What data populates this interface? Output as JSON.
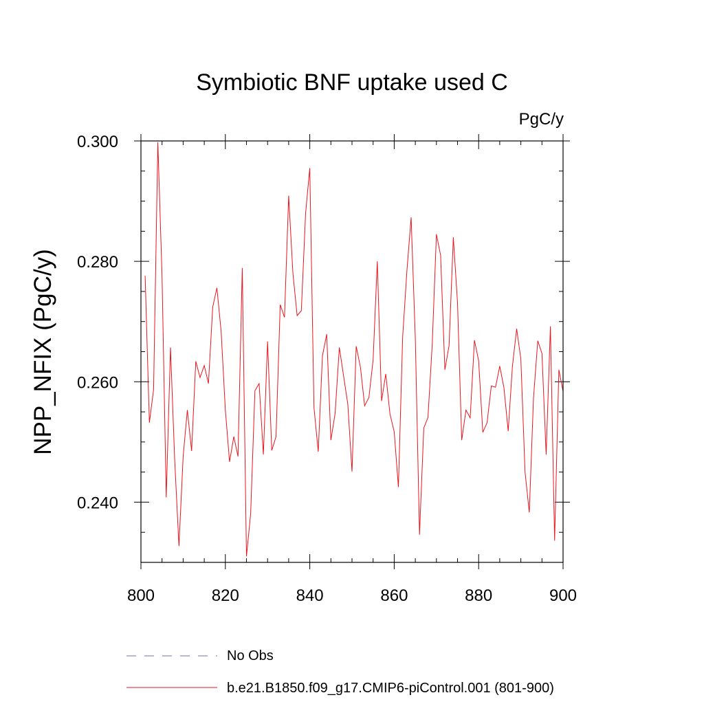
{
  "chart_data": {
    "type": "line",
    "title": "Symbiotic BNF uptake used C",
    "units": "PgC/y",
    "xlabel": "",
    "ylabel": "NPP_NFIX  (PgC/y)",
    "xlim": [
      800,
      900
    ],
    "ylim": [
      0.23,
      0.3
    ],
    "x_major_ticks": [
      800,
      820,
      840,
      860,
      880,
      900
    ],
    "x_tick_labels": [
      "800",
      "820",
      "840",
      "860",
      "880",
      "900"
    ],
    "x_minor_step": 5,
    "y_major_ticks": [
      0.24,
      0.26,
      0.28,
      0.3
    ],
    "y_tick_labels": [
      "0.240",
      "0.260",
      "0.280",
      "0.300"
    ],
    "y_minor_step": 0.005,
    "grid": false,
    "legend_position": "bottom",
    "series": [
      {
        "name": "No Obs",
        "color": "#7b68b5",
        "dash": true,
        "values": []
      },
      {
        "name": "b.e21.B1850.f09_g17.CMIP6-piControl.001 (801-900)",
        "color": "#e8141c",
        "dash": false,
        "x_start": 801,
        "x_step": 1,
        "values": [
          0.2776,
          0.2532,
          0.2587,
          0.2998,
          0.2775,
          0.2408,
          0.2657,
          0.247,
          0.2327,
          0.2476,
          0.2553,
          0.2485,
          0.2634,
          0.2607,
          0.2627,
          0.2597,
          0.2724,
          0.2756,
          0.2683,
          0.2553,
          0.2467,
          0.2509,
          0.2476,
          0.2789,
          0.231,
          0.2381,
          0.2585,
          0.2597,
          0.2479,
          0.2667,
          0.2486,
          0.2509,
          0.2728,
          0.2707,
          0.2909,
          0.2781,
          0.271,
          0.2718,
          0.288,
          0.2955,
          0.2557,
          0.2484,
          0.2643,
          0.2679,
          0.2503,
          0.2547,
          0.2657,
          0.261,
          0.2563,
          0.2451,
          0.2659,
          0.2624,
          0.256,
          0.2574,
          0.2636,
          0.28,
          0.2568,
          0.2613,
          0.2546,
          0.2517,
          0.2425,
          0.2675,
          0.2783,
          0.2873,
          0.2672,
          0.2346,
          0.2523,
          0.2541,
          0.2662,
          0.2845,
          0.281,
          0.262,
          0.266,
          0.284,
          0.2731,
          0.2503,
          0.2553,
          0.254,
          0.2669,
          0.2635,
          0.2516,
          0.2532,
          0.2593,
          0.2591,
          0.2626,
          0.259,
          0.2518,
          0.2625,
          0.2688,
          0.2638,
          0.245,
          0.2383,
          0.2573,
          0.2668,
          0.2647,
          0.2479,
          0.2692,
          0.2336,
          0.262,
          0.2584
        ]
      }
    ]
  }
}
